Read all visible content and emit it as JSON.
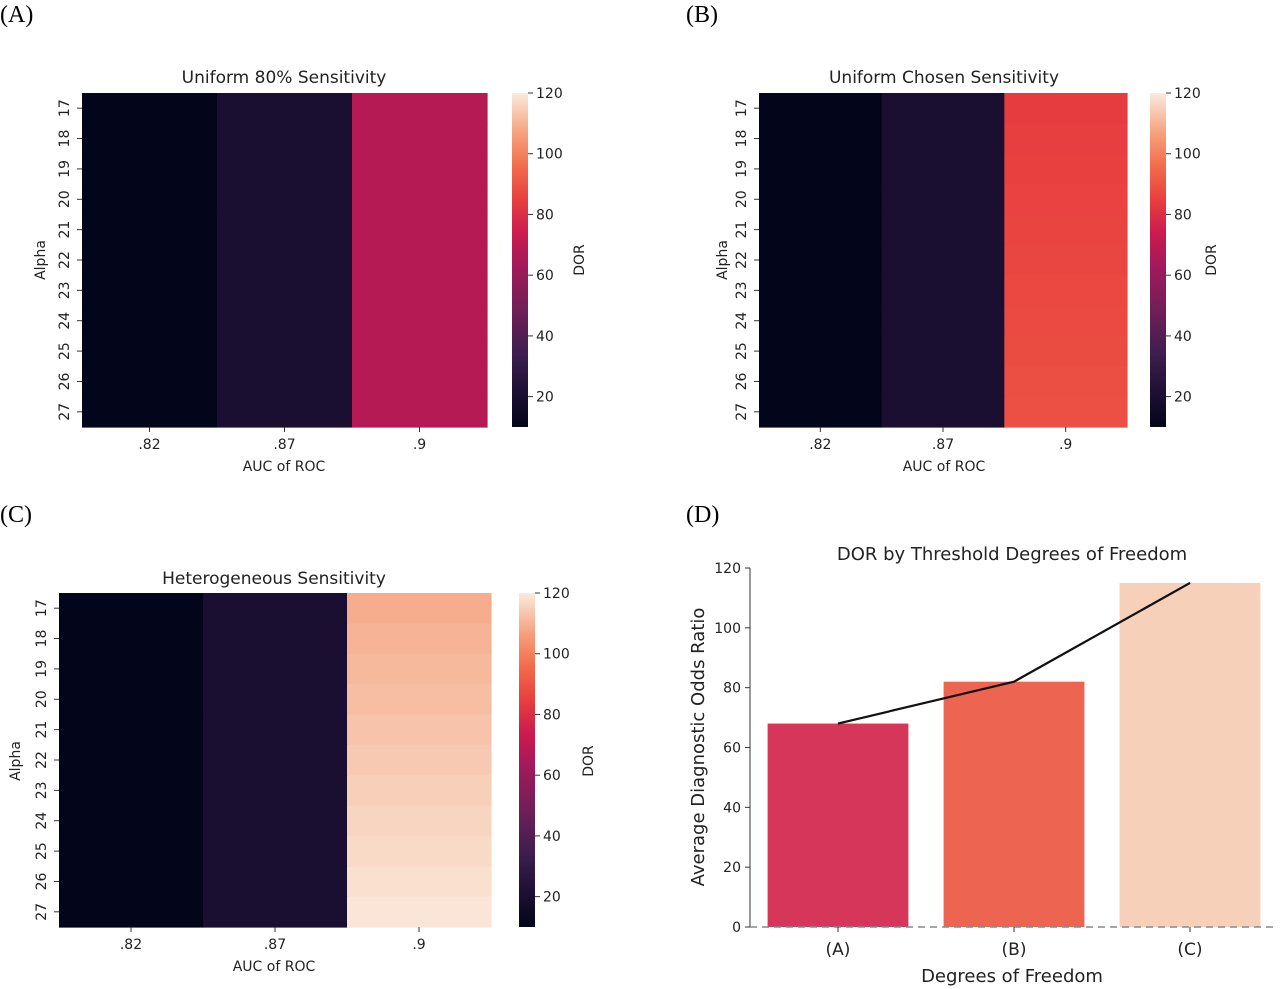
{
  "chart_data": [
    {
      "panel": "(A)",
      "type": "heatmap",
      "title": "Uniform 80% Sensitivity",
      "xlabel": "AUC of ROC",
      "ylabel": "Alpha",
      "x_categories": [
        ".82",
        ".87",
        ".9"
      ],
      "y_categories": [
        "17",
        "18",
        "19",
        "20",
        "21",
        "22",
        "23",
        "24",
        "25",
        "26",
        "27"
      ],
      "colorbar": {
        "label": "DOR",
        "range": [
          10,
          120
        ],
        "ticks": [
          20,
          40,
          60,
          80,
          100,
          120
        ]
      },
      "values": [
        [
          10,
          20,
          68
        ],
        [
          10,
          20,
          68
        ],
        [
          10,
          20,
          68
        ],
        [
          10,
          20,
          68
        ],
        [
          10,
          20,
          68
        ],
        [
          10,
          20,
          68
        ],
        [
          10,
          20,
          68
        ],
        [
          10,
          20,
          68
        ],
        [
          10,
          20,
          68
        ],
        [
          10,
          20,
          68
        ],
        [
          10,
          20,
          68
        ]
      ]
    },
    {
      "panel": "(B)",
      "type": "heatmap",
      "title": "Uniform Chosen Sensitivity",
      "xlabel": "AUC of ROC",
      "ylabel": "Alpha",
      "x_categories": [
        ".82",
        ".87",
        ".9"
      ],
      "y_categories": [
        "17",
        "18",
        "19",
        "20",
        "21",
        "22",
        "23",
        "24",
        "25",
        "26",
        "27"
      ],
      "colorbar": {
        "label": "DOR",
        "range": [
          10,
          120
        ],
        "ticks": [
          20,
          40,
          60,
          80,
          100,
          120
        ]
      },
      "values": [
        [
          10,
          20,
          84
        ],
        [
          10,
          20,
          84.5
        ],
        [
          10,
          20,
          85
        ],
        [
          10,
          20,
          85.5
        ],
        [
          10,
          20,
          86
        ],
        [
          10,
          20,
          86.5
        ],
        [
          10,
          20,
          87
        ],
        [
          10,
          20,
          87.5
        ],
        [
          10,
          20,
          88
        ],
        [
          10,
          20,
          88.5
        ],
        [
          10,
          20,
          89
        ]
      ]
    },
    {
      "panel": "(C)",
      "type": "heatmap",
      "title": "Heterogeneous Sensitivity",
      "xlabel": "AUC of ROC",
      "ylabel": "Alpha",
      "x_categories": [
        ".82",
        ".87",
        ".9"
      ],
      "y_categories": [
        "17",
        "18",
        "19",
        "20",
        "21",
        "22",
        "23",
        "24",
        "25",
        "26",
        "27"
      ],
      "colorbar": {
        "label": "DOR",
        "range": [
          10,
          120
        ],
        "ticks": [
          20,
          40,
          60,
          80,
          100,
          120
        ]
      },
      "values": [
        [
          10,
          20,
          109
        ],
        [
          10,
          20,
          110
        ],
        [
          10,
          20,
          111
        ],
        [
          10,
          20,
          112
        ],
        [
          10,
          20,
          113
        ],
        [
          10,
          20,
          114
        ],
        [
          10,
          20,
          115
        ],
        [
          10,
          20,
          116
        ],
        [
          10,
          20,
          117
        ],
        [
          10,
          20,
          118
        ],
        [
          10,
          20,
          119
        ]
      ]
    },
    {
      "panel": "(D)",
      "type": "bar",
      "title": "DOR by Threshold Degrees of Freedom",
      "xlabel": "Degrees of Freedom",
      "ylabel": "Average Diagnostic Odds Ratio",
      "categories": [
        "(A)",
        "(B)",
        "(C)"
      ],
      "values": [
        68,
        82,
        115
      ],
      "bar_colors": [
        "#d5365a",
        "#ed6450",
        "#f6d0b8"
      ],
      "line_values": [
        68,
        82,
        115
      ],
      "line_color": "#111111",
      "baseline": {
        "y": 0,
        "style": "dashed"
      },
      "ylim": [
        0,
        120
      ],
      "yticks": [
        0,
        20,
        40,
        60,
        80,
        100,
        120
      ]
    }
  ]
}
